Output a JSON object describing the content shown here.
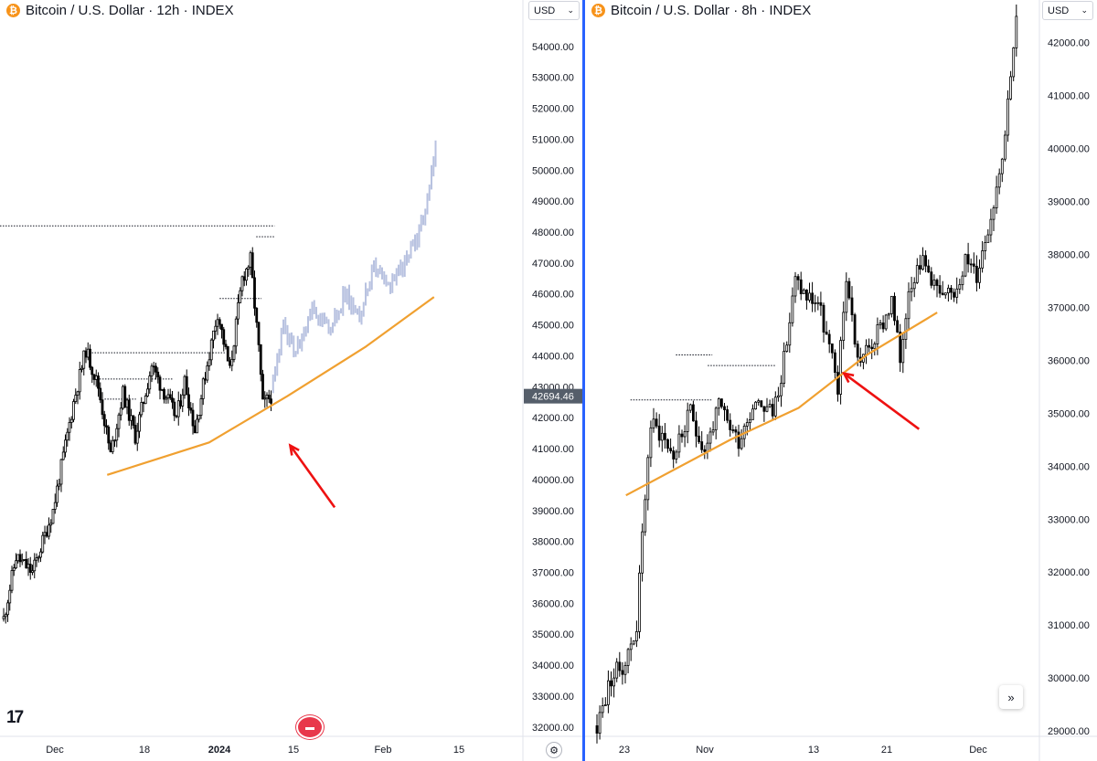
{
  "colors": {
    "bull": "#ffffff",
    "bear": "#000000",
    "wick": "#000000",
    "projection": "#b8c2e0",
    "curve": "#f0a030",
    "arrow": "#ee1111",
    "price_tag": "#555e6a",
    "divider": "#2962ff"
  },
  "icons": {
    "coin": "bitcoin-icon",
    "dropdown": "chevron-down-icon",
    "settings": "gear-icon",
    "scroll": "double-chevron-right-icon",
    "logo": "tradingview-logo",
    "event": "us-flag-event-icon"
  },
  "chart_data": [
    {
      "type": "candlestick",
      "title": "Bitcoin / U.S. Dollar · 12h · INDEX",
      "currency": "USD",
      "current_price": "42694.46",
      "logo_text": "17",
      "ylim": [
        31700,
        55500
      ],
      "y_ticks": [
        "54000.00",
        "53000.00",
        "52000.00",
        "51000.00",
        "50000.00",
        "49000.00",
        "48000.00",
        "47000.00",
        "46000.00",
        "45000.00",
        "44000.00",
        "43000.00",
        "42000.00",
        "41000.00",
        "40000.00",
        "39000.00",
        "38000.00",
        "37000.00",
        "36000.00",
        "35000.00",
        "34000.00",
        "33000.00",
        "32000.00"
      ],
      "x_ticks": [
        "Dec",
        "18",
        "2024",
        "15",
        "Feb",
        "15"
      ],
      "waypoints": [
        [
          0,
          35500
        ],
        [
          6,
          37500
        ],
        [
          14,
          37000
        ],
        [
          24,
          39000
        ],
        [
          34,
          42500
        ],
        [
          40,
          44200
        ],
        [
          46,
          43000
        ],
        [
          52,
          40800
        ],
        [
          58,
          42800
        ],
        [
          64,
          41400
        ],
        [
          72,
          43700
        ],
        [
          76,
          43100
        ],
        [
          84,
          42000
        ],
        [
          88,
          43200
        ],
        [
          93,
          41600
        ],
        [
          98,
          43400
        ],
        [
          104,
          45400
        ],
        [
          110,
          43500
        ],
        [
          116,
          46500
        ],
        [
          120,
          47100
        ],
        [
          124,
          44200
        ],
        [
          126,
          42400
        ],
        [
          130,
          42700
        ]
      ],
      "projection_waypoints": [
        [
          131,
          43000
        ],
        [
          136,
          45000
        ],
        [
          142,
          44000
        ],
        [
          150,
          45600
        ],
        [
          158,
          44800
        ],
        [
          166,
          46000
        ],
        [
          172,
          45300
        ],
        [
          180,
          46800
        ],
        [
          186,
          46200
        ],
        [
          192,
          46800
        ],
        [
          198,
          47300
        ],
        [
          204,
          48300
        ],
        [
          210,
          50600
        ]
      ],
      "support_curve": [
        [
          0.205,
          40150
        ],
        [
          0.4,
          41200
        ],
        [
          0.55,
          42700
        ],
        [
          0.7,
          44300
        ],
        [
          0.83,
          45900
        ]
      ],
      "arrow": {
        "from": [
          0.64,
          39100
        ],
        "to": [
          0.555,
          41100
        ]
      },
      "levels": [
        {
          "price": 48200,
          "from": 0.0,
          "to": 0.525
        },
        {
          "price": 44100,
          "from": 0.16,
          "to": 0.43
        },
        {
          "price": 43250,
          "from": 0.18,
          "to": 0.33
        },
        {
          "price": 42600,
          "from": 0.2,
          "to": 0.26
        },
        {
          "price": 45850,
          "from": 0.42,
          "to": 0.5
        },
        {
          "price": 47850,
          "from": 0.49,
          "to": 0.525
        }
      ]
    },
    {
      "type": "candlestick",
      "title": "Bitcoin / U.S. Dollar · 8h · INDEX",
      "currency": "USD",
      "ylim": [
        28900,
        42800
      ],
      "y_ticks": [
        "42000.00",
        "41000.00",
        "40000.00",
        "39000.00",
        "38000.00",
        "37000.00",
        "36000.00",
        "35000.00",
        "34000.00",
        "33000.00",
        "32000.00",
        "31000.00",
        "30000.00",
        "29000.00"
      ],
      "x_ticks": [
        "23",
        "Nov",
        "13",
        "21",
        "Dec"
      ],
      "waypoints": [
        [
          0,
          29100
        ],
        [
          5,
          30000
        ],
        [
          10,
          30300
        ],
        [
          14,
          31000
        ],
        [
          17,
          33500
        ],
        [
          19,
          34800
        ],
        [
          23,
          34600
        ],
        [
          27,
          34200
        ],
        [
          33,
          35000
        ],
        [
          38,
          34300
        ],
        [
          43,
          35100
        ],
        [
          50,
          34500
        ],
        [
          56,
          35300
        ],
        [
          62,
          35000
        ],
        [
          66,
          36000
        ],
        [
          70,
          37500
        ],
        [
          74,
          37200
        ],
        [
          78,
          37100
        ],
        [
          82,
          36200
        ],
        [
          85,
          35500
        ],
        [
          88,
          37600
        ],
        [
          92,
          36000
        ],
        [
          96,
          36200
        ],
        [
          100,
          36600
        ],
        [
          104,
          37100
        ],
        [
          107,
          36000
        ],
        [
          110,
          37400
        ],
        [
          114,
          37900
        ],
        [
          118,
          37600
        ],
        [
          122,
          37100
        ],
        [
          126,
          37300
        ],
        [
          130,
          37900
        ],
        [
          134,
          37600
        ],
        [
          137,
          38300
        ],
        [
          140,
          39000
        ],
        [
          144,
          40300
        ],
        [
          146,
          41500
        ],
        [
          148,
          42400
        ]
      ],
      "support_curve": [
        [
          0.09,
          33450
        ],
        [
          0.32,
          34500
        ],
        [
          0.47,
          35100
        ],
        [
          0.62,
          36100
        ],
        [
          0.775,
          36900
        ]
      ],
      "arrow": {
        "from": [
          0.735,
          34700
        ],
        "to": [
          0.57,
          35750
        ]
      },
      "levels": [
        {
          "price": 35250,
          "from": 0.1,
          "to": 0.28
        },
        {
          "price": 35900,
          "from": 0.27,
          "to": 0.42
        },
        {
          "price": 36100,
          "from": 0.2,
          "to": 0.28
        }
      ]
    }
  ]
}
